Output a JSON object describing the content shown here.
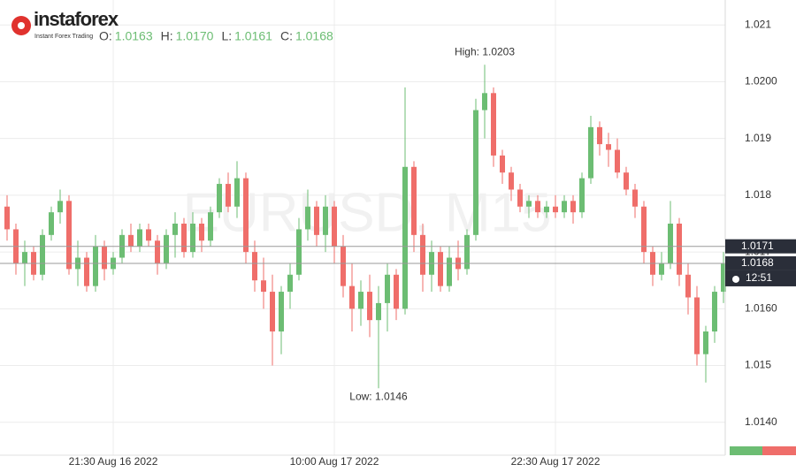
{
  "logo": {
    "brand": "instaforex",
    "tagline": "Instant Forex Trading"
  },
  "chart_data": {
    "type": "candlestick",
    "watermark": "EURUSD, M15",
    "header": [
      {
        "label": "O:",
        "value": "1.0163"
      },
      {
        "label": "H:",
        "value": "1.0170"
      },
      {
        "label": "L:",
        "value": "1.0161"
      },
      {
        "label": "C:",
        "value": "1.0168"
      }
    ],
    "up_color": "#6cbd73",
    "down_color": "#ef6e6a",
    "ylim": [
      1.01342,
      1.02144
    ],
    "yticks": [
      {
        "value": 1.014,
        "label": "1.0140"
      },
      1.015,
      {
        "value": 1.016,
        "label": "1.0160"
      },
      1.017,
      1.018,
      1.019,
      {
        "value": 1.02,
        "label": "1.0200"
      },
      1.021
    ],
    "xticks": [
      {
        "value": 12,
        "label": "21:30 Aug 16 2022"
      },
      {
        "value": 37,
        "label": "10:00 Aug 17 2022"
      },
      {
        "value": 62,
        "label": "22:30 Aug 17 2022"
      }
    ],
    "grid": true,
    "price_lines": [
      1.0171,
      1.0168
    ],
    "timer": "12:51",
    "annotations": {
      "high": "High: 1.0203",
      "low": "Low: 1.0146"
    },
    "candles": [
      [
        1.0178,
        1.018,
        1.0172,
        1.0174
      ],
      [
        1.0174,
        1.0175,
        1.0166,
        1.0168
      ],
      [
        1.0168,
        1.0172,
        1.0164,
        1.017
      ],
      [
        1.017,
        1.0171,
        1.0165,
        1.0166
      ],
      [
        1.0166,
        1.0174,
        1.0165,
        1.0173
      ],
      [
        1.0173,
        1.0178,
        1.0172,
        1.0177
      ],
      [
        1.0177,
        1.0181,
        1.0175,
        1.0179
      ],
      [
        1.0179,
        1.018,
        1.0166,
        1.0167
      ],
      [
        1.0167,
        1.0172,
        1.0164,
        1.0169
      ],
      [
        1.0169,
        1.017,
        1.0163,
        1.0164
      ],
      [
        1.0164,
        1.0173,
        1.0163,
        1.0171
      ],
      [
        1.0171,
        1.0172,
        1.0165,
        1.0167
      ],
      [
        1.0167,
        1.017,
        1.0166,
        1.0169
      ],
      [
        1.0169,
        1.0174,
        1.0168,
        1.0173
      ],
      [
        1.0173,
        1.0175,
        1.017,
        1.0171
      ],
      [
        1.0171,
        1.0175,
        1.017,
        1.0174
      ],
      [
        1.0174,
        1.0175,
        1.0171,
        1.0172
      ],
      [
        1.0172,
        1.0173,
        1.0166,
        1.0168
      ],
      [
        1.0168,
        1.0174,
        1.0167,
        1.0173
      ],
      [
        1.0173,
        1.0177,
        1.0169,
        1.0175
      ],
      [
        1.0175,
        1.0176,
        1.0169,
        1.017
      ],
      [
        1.017,
        1.0177,
        1.0169,
        1.0175
      ],
      [
        1.0175,
        1.0176,
        1.017,
        1.0172
      ],
      [
        1.0172,
        1.0178,
        1.0171,
        1.0177
      ],
      [
        1.0177,
        1.0183,
        1.0176,
        1.0182
      ],
      [
        1.0182,
        1.0184,
        1.0177,
        1.0178
      ],
      [
        1.0178,
        1.0186,
        1.0176,
        1.0183
      ],
      [
        1.0183,
        1.0184,
        1.0168,
        1.017
      ],
      [
        1.017,
        1.0172,
        1.0163,
        1.0165
      ],
      [
        1.0165,
        1.0169,
        1.016,
        1.0163
      ],
      [
        1.0163,
        1.0166,
        1.015,
        1.0156
      ],
      [
        1.0156,
        1.0164,
        1.0152,
        1.0163
      ],
      [
        1.0163,
        1.0168,
        1.016,
        1.0166
      ],
      [
        1.0166,
        1.0176,
        1.0165,
        1.0174
      ],
      [
        1.0174,
        1.0181,
        1.0172,
        1.0178
      ],
      [
        1.0178,
        1.0179,
        1.0171,
        1.0173
      ],
      [
        1.0173,
        1.018,
        1.017,
        1.0178
      ],
      [
        1.0178,
        1.0179,
        1.0168,
        1.0171
      ],
      [
        1.0171,
        1.0173,
        1.0162,
        1.0164
      ],
      [
        1.0164,
        1.0168,
        1.0156,
        1.016
      ],
      [
        1.016,
        1.0165,
        1.0157,
        1.0163
      ],
      [
        1.0163,
        1.0166,
        1.0155,
        1.0158
      ],
      [
        1.0158,
        1.0164,
        1.0146,
        1.0161
      ],
      [
        1.0161,
        1.0168,
        1.0156,
        1.0166
      ],
      [
        1.0166,
        1.0167,
        1.0158,
        1.016
      ],
      [
        1.016,
        1.0199,
        1.0159,
        1.0185
      ],
      [
        1.0185,
        1.0186,
        1.017,
        1.0173
      ],
      [
        1.0173,
        1.0175,
        1.0163,
        1.0166
      ],
      [
        1.0166,
        1.0172,
        1.0163,
        1.017
      ],
      [
        1.017,
        1.0171,
        1.0163,
        1.0164
      ],
      [
        1.0164,
        1.0171,
        1.0163,
        1.0169
      ],
      [
        1.0169,
        1.0172,
        1.0165,
        1.0167
      ],
      [
        1.0167,
        1.0174,
        1.0166,
        1.0173
      ],
      [
        1.0173,
        1.0197,
        1.0172,
        1.0195
      ],
      [
        1.0195,
        1.0203,
        1.019,
        1.0198
      ],
      [
        1.0198,
        1.0199,
        1.0185,
        1.0187
      ],
      [
        1.0187,
        1.0188,
        1.0182,
        1.0184
      ],
      [
        1.0184,
        1.0185,
        1.0179,
        1.0181
      ],
      [
        1.0181,
        1.0182,
        1.0177,
        1.0178
      ],
      [
        1.0178,
        1.018,
        1.0176,
        1.0179
      ],
      [
        1.0179,
        1.018,
        1.0176,
        1.0177
      ],
      [
        1.0177,
        1.0179,
        1.0176,
        1.0178
      ],
      [
        1.0178,
        1.018,
        1.0176,
        1.0177
      ],
      [
        1.0177,
        1.018,
        1.0176,
        1.0179
      ],
      [
        1.0179,
        1.018,
        1.0175,
        1.0177
      ],
      [
        1.0177,
        1.0184,
        1.0176,
        1.0183
      ],
      [
        1.0183,
        1.0194,
        1.0182,
        1.0192
      ],
      [
        1.0192,
        1.0193,
        1.0187,
        1.0189
      ],
      [
        1.0189,
        1.0191,
        1.0185,
        1.0188
      ],
      [
        1.0188,
        1.019,
        1.0183,
        1.0184
      ],
      [
        1.0184,
        1.0185,
        1.018,
        1.0181
      ],
      [
        1.0181,
        1.0182,
        1.0176,
        1.0178
      ],
      [
        1.0178,
        1.0179,
        1.0168,
        1.017
      ],
      [
        1.017,
        1.0171,
        1.0164,
        1.0166
      ],
      [
        1.0166,
        1.017,
        1.0165,
        1.0168
      ],
      [
        1.0168,
        1.0179,
        1.0167,
        1.0175
      ],
      [
        1.0175,
        1.0176,
        1.0164,
        1.0166
      ],
      [
        1.0166,
        1.0168,
        1.0159,
        1.0162
      ],
      [
        1.0162,
        1.0164,
        1.015,
        1.0152
      ],
      [
        1.0152,
        1.0157,
        1.0147,
        1.0156
      ],
      [
        1.0156,
        1.0164,
        1.0154,
        1.0163
      ],
      [
        1.0163,
        1.017,
        1.0161,
        1.0168
      ]
    ]
  }
}
